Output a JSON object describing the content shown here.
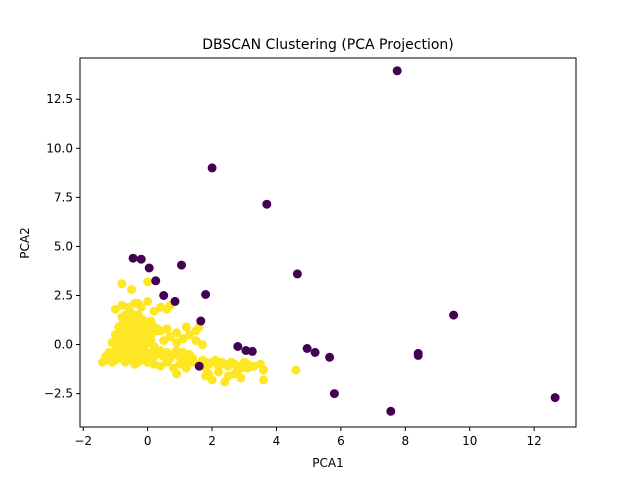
{
  "chart_data": {
    "type": "scatter",
    "title": "DBSCAN Clustering (PCA Projection)",
    "xlabel": "PCA1",
    "ylabel": "PCA2",
    "xlim": [
      -2.1,
      13.3
    ],
    "ylim": [
      -4.2,
      14.6
    ],
    "x_ticks": [
      -2,
      0,
      2,
      4,
      6,
      8,
      10,
      12
    ],
    "y_ticks": [
      -2.5,
      0.0,
      2.5,
      5.0,
      7.5,
      10.0,
      12.5
    ],
    "x_tick_labels": [
      "−2",
      "0",
      "2",
      "4",
      "6",
      "8",
      "10",
      "12"
    ],
    "y_tick_labels": [
      "−2.5",
      "0.0",
      "2.5",
      "5.0",
      "7.5",
      "10.0",
      "12.5"
    ],
    "grid": false,
    "colors": {
      "noise": "#440154",
      "cluster": "#fde725"
    },
    "series": [
      {
        "color": "#fde725",
        "x": [
          -1.4,
          -1.3,
          -1.2,
          -1.1,
          -1.0,
          -0.9,
          -0.8,
          -0.7,
          -0.6,
          -0.5,
          -0.4,
          -0.3,
          -0.2,
          -0.1,
          0.0,
          -1.2,
          -1.0,
          -0.9,
          -0.8,
          -0.7,
          -0.6,
          -0.5,
          -0.4,
          -0.3,
          -0.2,
          -0.1,
          0.0,
          0.1,
          0.2,
          0.3,
          -1.1,
          -1.0,
          -0.9,
          -0.8,
          -0.7,
          -0.6,
          -0.5,
          -0.4,
          -0.3,
          -0.2,
          -0.1,
          0.0,
          0.1,
          0.2,
          -1.0,
          -0.9,
          -0.8,
          -0.7,
          -0.6,
          -0.5,
          -0.4,
          -0.3,
          -0.2,
          -0.1,
          0.0,
          0.1,
          -1.3,
          -1.2,
          -1.1,
          -1.0,
          -0.9,
          -0.8,
          -0.7,
          -0.6,
          -0.5,
          -0.4,
          -0.3,
          -0.2,
          -0.9,
          -0.8,
          -0.7,
          -0.6,
          -0.5,
          -0.4,
          -0.3,
          -0.2,
          -0.1,
          0.0,
          0.1,
          0.2,
          0.3,
          0.4,
          -0.8,
          -0.7,
          -0.6,
          -0.5,
          -0.4,
          -0.3,
          -0.2,
          -0.1,
          0.0,
          0.1,
          -1.0,
          -0.8,
          -0.6,
          -0.4,
          -0.2,
          0.0,
          0.2,
          0.4,
          0.6,
          0.3,
          0.4,
          0.5,
          0.6,
          0.7,
          0.8,
          0.9,
          1.0,
          1.1,
          1.2,
          1.3,
          1.4,
          0.2,
          0.4,
          0.6,
          0.8,
          1.0,
          1.2,
          1.4,
          1.6,
          1.8,
          0.5,
          0.7,
          0.9,
          1.1,
          1.3,
          1.5,
          1.7,
          0.3,
          0.6,
          0.9,
          1.2,
          1.5,
          1.7,
          1.8,
          1.9,
          2.0,
          2.1,
          2.2,
          2.3,
          2.4,
          2.5,
          2.6,
          2.7,
          2.8,
          2.9,
          3.0,
          3.1,
          1.9,
          2.2,
          2.5,
          2.8,
          3.1,
          3.3,
          3.5,
          3.6,
          2.0,
          2.4,
          2.9,
          -0.8,
          -0.5,
          -0.3,
          0.0,
          0.7,
          1.6,
          4.6,
          3.6,
          2.7,
          1.2,
          0.9,
          1.8
        ],
        "y": [
          -0.9,
          -0.8,
          -0.7,
          -0.9,
          -0.8,
          -0.6,
          -0.7,
          -0.9,
          -0.8,
          -0.7,
          -1.0,
          -0.9,
          -0.8,
          -0.6,
          -0.9,
          -0.4,
          -0.3,
          -0.2,
          -0.4,
          -0.3,
          -0.5,
          -0.2,
          -0.3,
          -0.4,
          -0.2,
          -0.3,
          -0.5,
          -0.4,
          -0.6,
          -0.3,
          0.1,
          0.2,
          0.0,
          0.1,
          0.3,
          0.1,
          0.2,
          0.0,
          0.1,
          0.2,
          0.0,
          0.1,
          0.2,
          -0.1,
          0.5,
          0.6,
          0.4,
          0.7,
          0.5,
          0.6,
          0.4,
          0.5,
          0.7,
          0.6,
          0.4,
          0.5,
          -0.6,
          -0.5,
          -0.4,
          -0.6,
          -0.5,
          -0.4,
          -0.6,
          -0.5,
          -0.4,
          -0.6,
          -0.5,
          -0.4,
          0.9,
          1.0,
          0.8,
          1.1,
          0.9,
          1.0,
          0.8,
          0.9,
          1.1,
          0.8,
          1.0,
          0.9,
          0.8,
          0.7,
          1.4,
          1.5,
          1.3,
          1.6,
          1.4,
          1.5,
          1.3,
          1.2,
          1.1,
          1.2,
          1.8,
          2.0,
          1.9,
          2.1,
          1.9,
          2.2,
          1.7,
          1.9,
          1.8,
          -0.5,
          -0.3,
          -0.6,
          -0.4,
          -0.7,
          -0.5,
          -0.3,
          -0.6,
          -0.4,
          -0.8,
          -0.5,
          -0.7,
          -1.0,
          -1.1,
          -0.9,
          -1.2,
          -1.0,
          -1.1,
          -0.9,
          -1.0,
          -1.2,
          0.2,
          0.4,
          0.1,
          0.3,
          0.5,
          0.2,
          0.0,
          0.7,
          0.8,
          0.6,
          0.9,
          0.7,
          -0.8,
          -0.9,
          -1.0,
          -0.9,
          -0.8,
          -1.1,
          -0.9,
          -1.0,
          -1.1,
          -0.9,
          -1.0,
          -1.1,
          -1.2,
          -0.9,
          -1.0,
          -1.5,
          -1.4,
          -1.6,
          -1.3,
          -1.2,
          -1.1,
          -1.0,
          -1.3,
          -1.8,
          -1.9,
          -1.7,
          3.1,
          2.8,
          2.1,
          3.2,
          2.0,
          0.9,
          -1.3,
          -1.8,
          -1.5,
          -1.2,
          -1.5,
          -1.6
        ]
      },
      {
        "color": "#440154",
        "x": [
          7.75,
          2.0,
          3.7,
          -0.45,
          -0.2,
          0.05,
          1.05,
          0.25,
          4.65,
          0.5,
          0.85,
          1.8,
          1.65,
          9.5,
          2.8,
          3.25,
          3.05,
          4.95,
          5.2,
          5.65,
          8.4,
          8.4,
          5.8,
          7.55,
          12.65,
          1.6
        ],
        "y": [
          13.95,
          9.0,
          7.15,
          4.4,
          4.35,
          3.9,
          4.05,
          3.25,
          3.6,
          2.5,
          2.2,
          2.55,
          1.2,
          1.5,
          -0.1,
          -0.35,
          -0.3,
          -0.2,
          -0.4,
          -0.65,
          -0.45,
          -0.55,
          -2.5,
          -3.4,
          -2.7,
          -1.1
        ]
      }
    ]
  }
}
